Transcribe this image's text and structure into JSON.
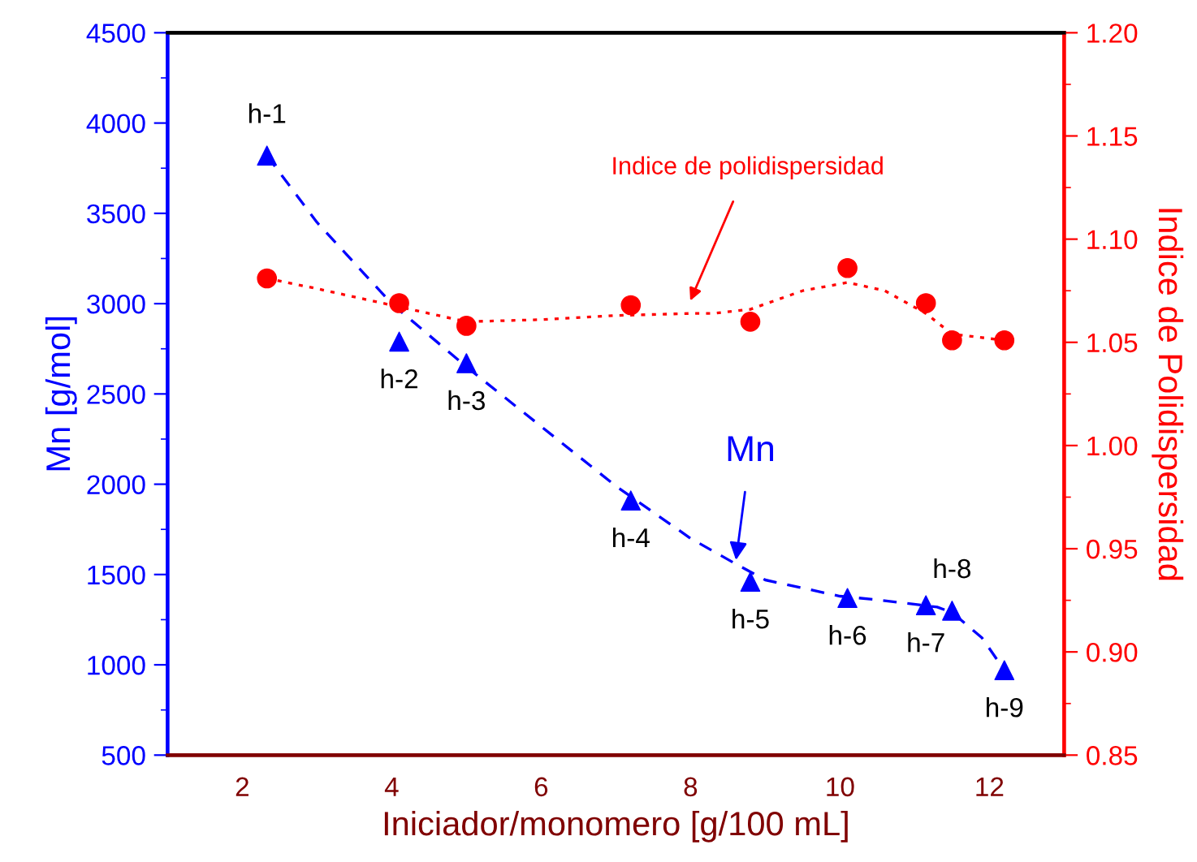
{
  "chart_data": {
    "type": "scatter",
    "xlabel": "Iniciador/monomero [g/100 mL]",
    "ylabel": "Mn [g/mol]",
    "y2label": "Indice de Polidispersidad",
    "xlim": [
      1,
      13
    ],
    "xticks": [
      2,
      4,
      6,
      8,
      10,
      12
    ],
    "ylim": [
      500,
      4500
    ],
    "yticks": [
      500,
      1000,
      1500,
      2000,
      2500,
      3000,
      3500,
      4000,
      4500
    ],
    "y2lim": [
      0.85,
      1.2
    ],
    "y2ticks": [
      {
        "value": 0.85,
        "label": "0.85"
      },
      {
        "value": 0.9,
        "label": "0.90"
      },
      {
        "value": 0.95,
        "label": "0.95"
      },
      {
        "value": 1.0,
        "label": "1.00"
      },
      {
        "value": 1.05,
        "label": "1.05"
      },
      {
        "value": 1.1,
        "label": "1.10"
      },
      {
        "value": 1.15,
        "label": "1.15"
      },
      {
        "value": 1.2,
        "label": "1.20"
      }
    ],
    "grid": false,
    "legend": false,
    "series": [
      {
        "name": "Mn",
        "color": "#0000ff",
        "marker": "triangle",
        "x": [
          2.33,
          4.1,
          5.0,
          7.2,
          8.8,
          10.1,
          11.15,
          11.5,
          12.2
        ],
        "values": [
          3820,
          2790,
          2670,
          1910,
          1460,
          1370,
          1330,
          1300,
          970
        ]
      },
      {
        "type": "line",
        "color": "#0000ff",
        "line_style": "dashed",
        "x": [
          2.33,
          3,
          4,
          5,
          6,
          7,
          8,
          8.6,
          9,
          10,
          10.5,
          11.3,
          11.5,
          11.9,
          12.2
        ],
        "values": [
          3820,
          3450,
          3000,
          2650,
          2320,
          1990,
          1700,
          1560,
          1470,
          1380,
          1360,
          1320,
          1290,
          1150,
          970
        ]
      },
      {
        "name": "Indice de polidispersidad",
        "axis": "y2",
        "color": "#ff0000",
        "marker": "circle",
        "x": [
          2.33,
          4.1,
          5.0,
          7.2,
          8.8,
          10.1,
          11.15,
          11.5,
          12.2
        ],
        "values": [
          1.081,
          1.069,
          1.058,
          1.068,
          1.06,
          1.086,
          1.069,
          1.051,
          1.051
        ]
      },
      {
        "type": "line",
        "axis": "y2",
        "color": "#ff0000",
        "line_style": "dotted",
        "x": [
          2.33,
          3,
          4,
          5,
          6,
          7,
          8,
          8.3,
          8.8,
          9.5,
          10.1,
          10.6,
          11.15,
          11.5,
          12.2
        ],
        "values": [
          1.081,
          1.076,
          1.068,
          1.06,
          1.061,
          1.063,
          1.064,
          1.064,
          1.066,
          1.075,
          1.079,
          1.075,
          1.064,
          1.054,
          1.051
        ]
      }
    ],
    "annotations": [
      {
        "text": "h-1",
        "x": 2.33,
        "y": 3820
      },
      {
        "text": "h-2",
        "x": 4.1,
        "y": 2790
      },
      {
        "text": "h-3",
        "x": 5.0,
        "y": 2670
      },
      {
        "text": "h-4",
        "x": 7.2,
        "y": 1910
      },
      {
        "text": "h-5",
        "x": 8.8,
        "y": 1460
      },
      {
        "text": "h-6",
        "x": 10.1,
        "y": 1370
      },
      {
        "text": "h-7",
        "x": 11.15,
        "y": 1330
      },
      {
        "text": "h-8",
        "x": 11.5,
        "y": 1300
      },
      {
        "text": "h-9",
        "x": 12.2,
        "y": 970
      }
    ]
  }
}
